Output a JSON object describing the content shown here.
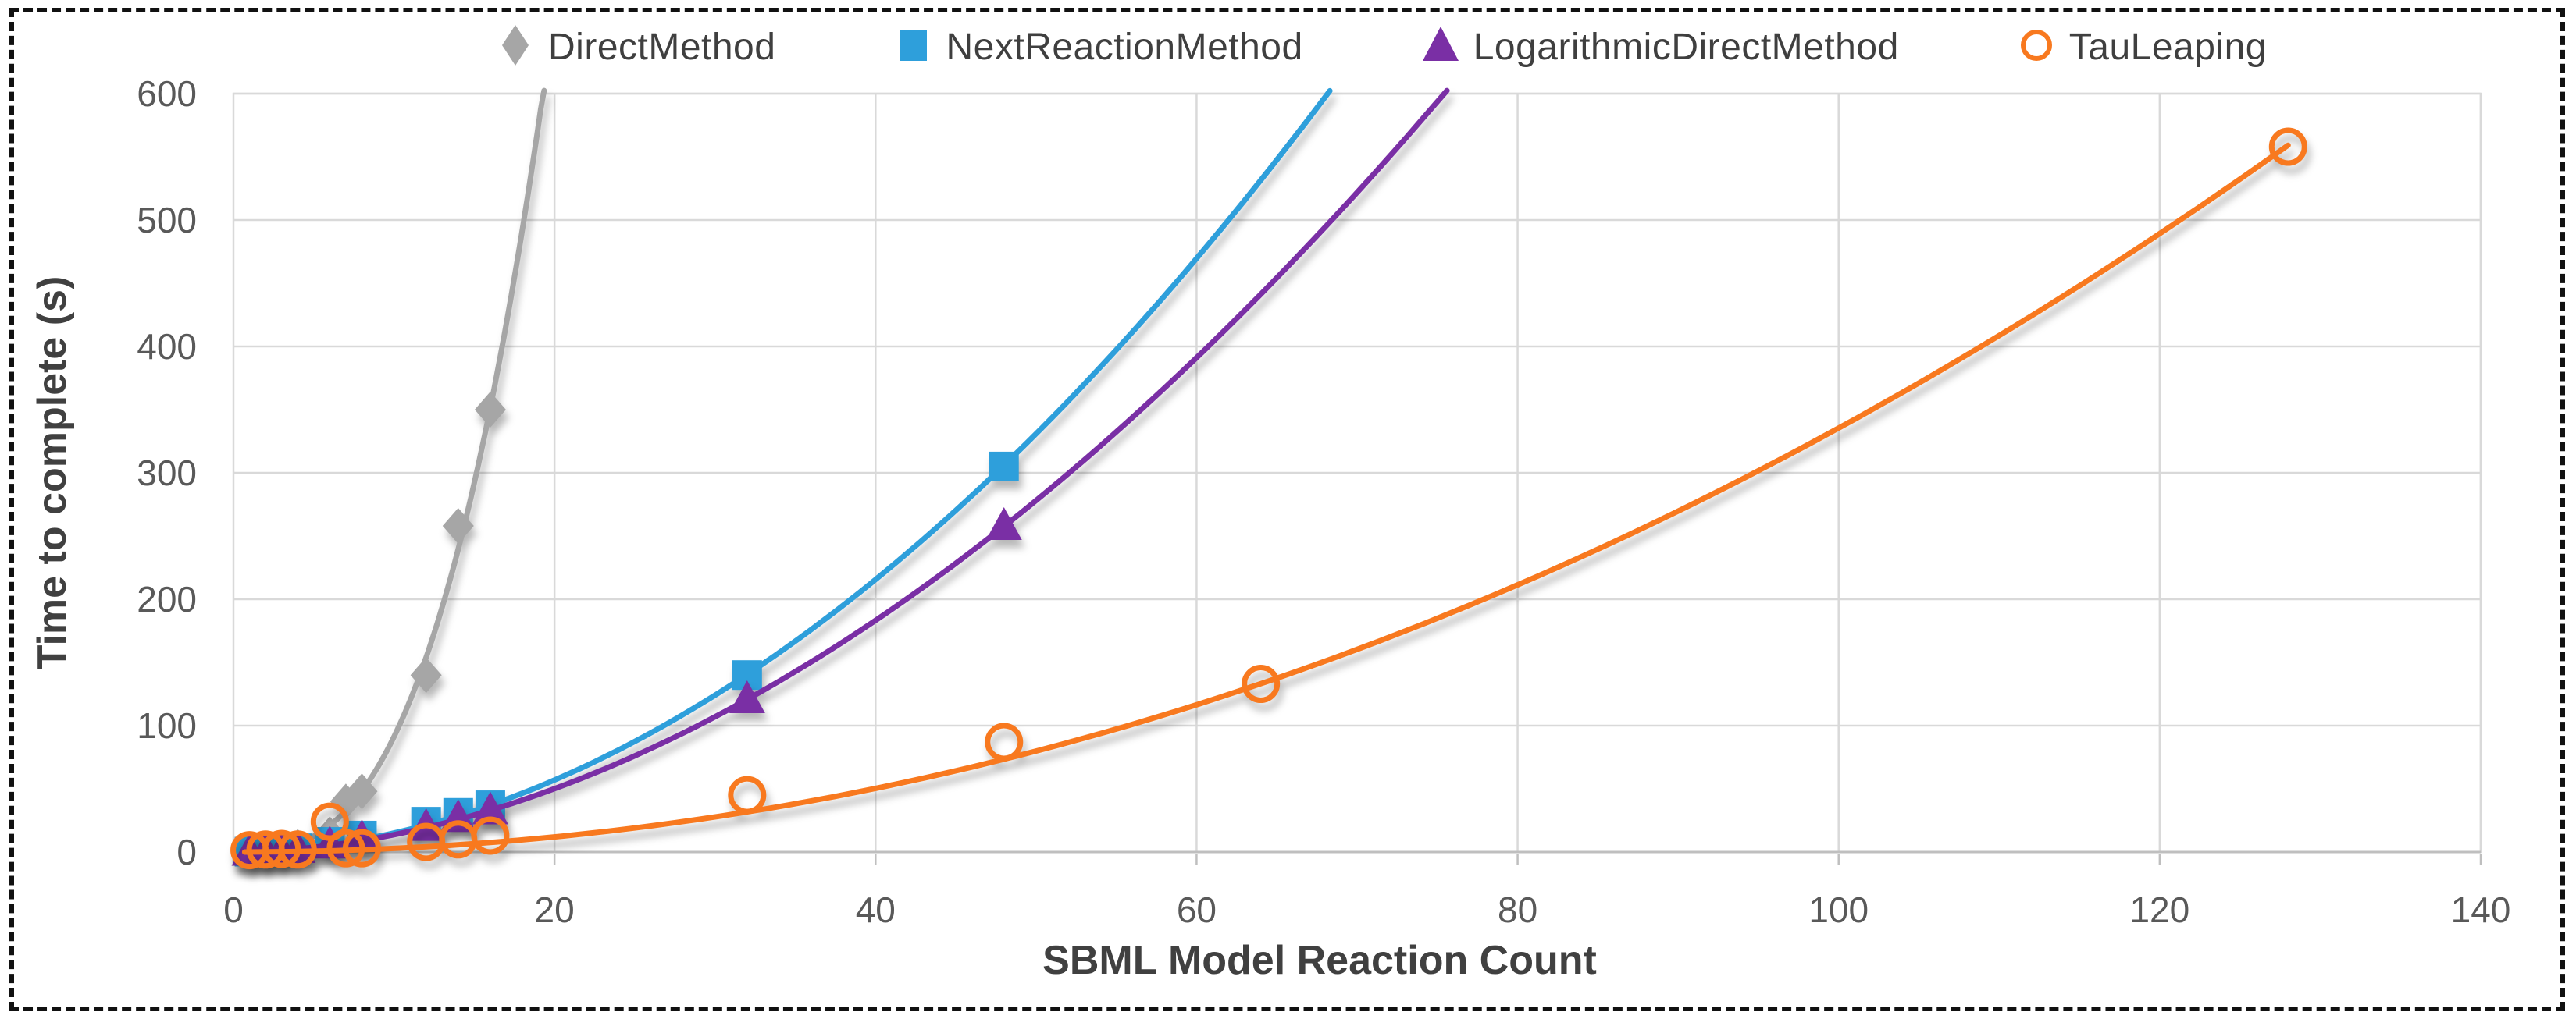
{
  "figure": {
    "background": "#FFFFFF",
    "border_style": "black dashed selection marquee around whole image"
  },
  "chart_data": {
    "type": "scatter",
    "title": "",
    "xlabel": "SBML Model Reaction Count",
    "ylabel": "Time to complete (s)",
    "xlim": [
      0,
      140
    ],
    "ylim": [
      0,
      600
    ],
    "x_ticks": [
      0,
      20,
      40,
      60,
      80,
      100,
      120,
      140
    ],
    "y_ticks": [
      0,
      100,
      200,
      300,
      400,
      500,
      600
    ],
    "grid": true,
    "legend_position": "top-center",
    "colors": {
      "grid": "#D9D9D9",
      "plot_border": "#D9D9D9",
      "axis_line": "#BFBFBF",
      "tick_text": "#595959",
      "axis_title_text": "#404040",
      "legend_text": "#3F3F3F"
    },
    "series": [
      {
        "name": "DirectMethod",
        "marker": "diamond",
        "marker_fill": "solid",
        "color": "#A6A6A6",
        "points": [
          [
            1,
            0.4
          ],
          [
            2,
            1
          ],
          [
            3,
            2
          ],
          [
            4,
            4
          ],
          [
            6,
            14
          ],
          [
            7,
            40
          ],
          [
            8,
            48
          ],
          [
            12,
            140
          ],
          [
            14,
            258
          ],
          [
            16,
            350
          ]
        ],
        "trendline": {
          "type": "power",
          "a": 0.123,
          "b": 2.87,
          "x_start": 0.7,
          "x_end": 19.35
        }
      },
      {
        "name": "NextReactionMethod",
        "marker": "square",
        "marker_fill": "solid",
        "color": "#2E9FDB",
        "points": [
          [
            1,
            0.3
          ],
          [
            2,
            0.8
          ],
          [
            3,
            1.6
          ],
          [
            4,
            3
          ],
          [
            6,
            8
          ],
          [
            8,
            13
          ],
          [
            12,
            24
          ],
          [
            14,
            31
          ],
          [
            16,
            37
          ],
          [
            32,
            140
          ],
          [
            48,
            305
          ]
        ],
        "trendline": {
          "type": "power",
          "a": 0.181,
          "b": 1.92,
          "x_start": 0.7,
          "x_end": 68.3
        }
      },
      {
        "name": "LogarithmicDirectMethod",
        "marker": "triangle",
        "marker_fill": "solid",
        "color": "#7A2FA5",
        "points": [
          [
            1,
            0.3
          ],
          [
            2,
            0.7
          ],
          [
            3,
            1.3
          ],
          [
            4,
            2.5
          ],
          [
            6,
            6
          ],
          [
            8,
            11
          ],
          [
            12,
            20
          ],
          [
            14,
            27
          ],
          [
            16,
            33
          ],
          [
            32,
            121
          ],
          [
            48,
            258
          ]
        ],
        "trendline": {
          "type": "power",
          "a": 0.185,
          "b": 1.87,
          "x_start": 0.7,
          "x_end": 75.6
        }
      },
      {
        "name": "TauLeaping",
        "marker": "circle-open",
        "marker_fill": "none",
        "color": "#F8791F",
        "points": [
          [
            1,
            1.5
          ],
          [
            2,
            2
          ],
          [
            3,
            2.5
          ],
          [
            4,
            2
          ],
          [
            6,
            24
          ],
          [
            7,
            3
          ],
          [
            8,
            3
          ],
          [
            12,
            8
          ],
          [
            14,
            10
          ],
          [
            16,
            13
          ],
          [
            32,
            45
          ],
          [
            48,
            87
          ],
          [
            64,
            133
          ],
          [
            128,
            558
          ]
        ],
        "trendline": {
          "type": "power",
          "a": 0.0243,
          "b": 2.07,
          "x_start": 0.7,
          "x_end": 128
        }
      }
    ]
  }
}
